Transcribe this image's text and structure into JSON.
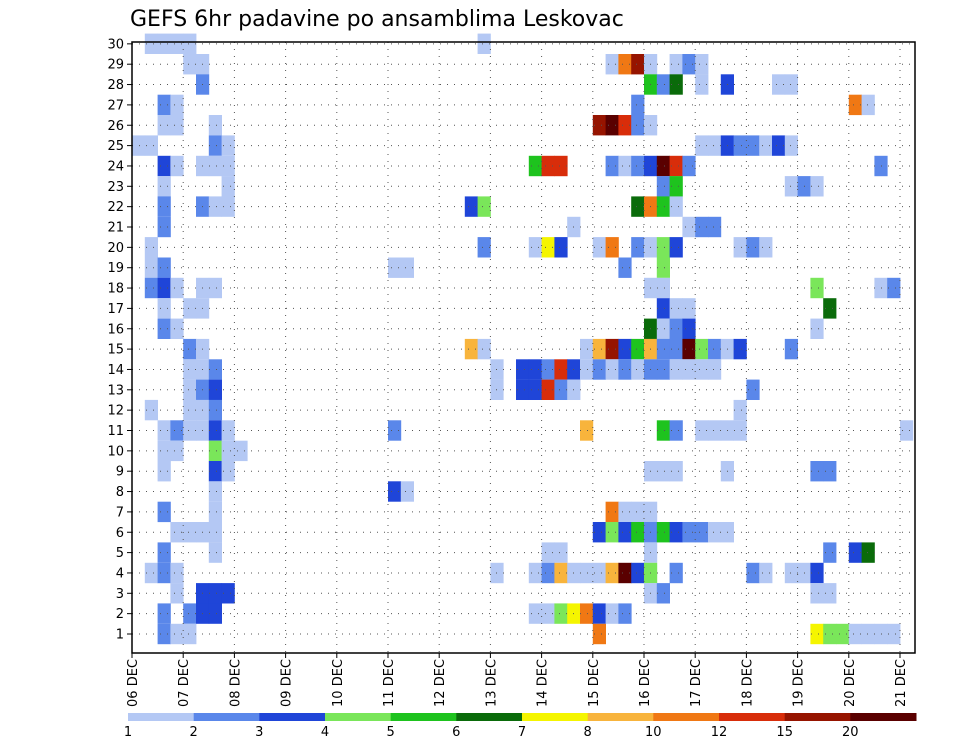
{
  "chart_data": {
    "type": "heatmap",
    "title": "GEFS 6hr padavine po ansamblima Leskovac",
    "xlabel": "",
    "ylabel": "",
    "x_tick_labels": [
      "06 DEC",
      "07 DEC",
      "08 DEC",
      "09 DEC",
      "10 DEC",
      "11 DEC",
      "12 DEC",
      "13 DEC",
      "14 DEC",
      "15 DEC",
      "16 DEC",
      "17 DEC",
      "18 DEC",
      "19 DEC",
      "20 DEC",
      "21 DEC"
    ],
    "y_tick_labels": [
      "1",
      "2",
      "3",
      "4",
      "5",
      "6",
      "7",
      "8",
      "9",
      "10",
      "11",
      "12",
      "13",
      "14",
      "15",
      "16",
      "17",
      "18",
      "19",
      "20",
      "21",
      "22",
      "23",
      "24",
      "25",
      "26",
      "27",
      "28",
      "29",
      "30"
    ],
    "x_range_days": [
      0,
      15.25
    ],
    "y_range_members": [
      0,
      30
    ],
    "grid": true,
    "colorbar": {
      "position": "bottom",
      "levels": [
        1,
        2,
        3,
        4,
        5,
        6,
        7,
        8,
        10,
        12,
        15,
        20
      ],
      "labels": [
        "1",
        "2",
        "3",
        "4",
        "5",
        "6",
        "7",
        "8",
        "10",
        "12",
        "15",
        "20"
      ],
      "colors": [
        "#b4c8f4",
        "#5a87ea",
        "#1f45d8",
        "#7ae65a",
        "#1ec31e",
        "#0a6b0a",
        "#f5f500",
        "#f8b43c",
        "#f07814",
        "#d82d0a",
        "#961400",
        "#5a0000"
      ]
    },
    "cells_note": "each entry: [member, day offset from 06 DEC in 0.25 (6h) steps, precipitation mm]",
    "cells": [
      [
        30,
        0.25,
        1
      ],
      [
        30,
        0.5,
        1
      ],
      [
        30,
        0.75,
        1
      ],
      [
        30,
        1.0,
        1
      ],
      [
        30,
        6.75,
        1
      ],
      [
        29,
        1.0,
        1
      ],
      [
        29,
        1.25,
        1
      ],
      [
        29,
        9.25,
        1
      ],
      [
        29,
        9.5,
        10
      ],
      [
        29,
        9.75,
        15
      ],
      [
        29,
        10.0,
        1
      ],
      [
        29,
        10.5,
        1
      ],
      [
        29,
        10.75,
        2
      ],
      [
        29,
        11.0,
        1
      ],
      [
        28,
        1.25,
        2
      ],
      [
        28,
        10.0,
        5
      ],
      [
        28,
        10.25,
        2
      ],
      [
        28,
        10.5,
        6
      ],
      [
        28,
        11.0,
        1
      ],
      [
        28,
        11.5,
        3
      ],
      [
        28,
        12.5,
        1
      ],
      [
        28,
        12.75,
        1
      ],
      [
        27,
        0.5,
        2
      ],
      [
        27,
        0.75,
        1
      ],
      [
        27,
        9.75,
        2
      ],
      [
        27,
        14.0,
        10
      ],
      [
        27,
        14.25,
        1
      ],
      [
        26,
        0.5,
        1
      ],
      [
        26,
        0.75,
        1
      ],
      [
        26,
        1.5,
        1
      ],
      [
        26,
        9.0,
        15
      ],
      [
        26,
        9.25,
        20
      ],
      [
        26,
        9.5,
        12
      ],
      [
        26,
        9.75,
        2
      ],
      [
        26,
        10.0,
        1
      ],
      [
        25,
        0,
        1
      ],
      [
        25,
        0.25,
        1
      ],
      [
        25,
        1.5,
        2
      ],
      [
        25,
        1.75,
        1
      ],
      [
        25,
        11.0,
        1
      ],
      [
        25,
        11.25,
        1
      ],
      [
        25,
        11.5,
        3
      ],
      [
        25,
        11.75,
        2
      ],
      [
        25,
        12.0,
        2
      ],
      [
        25,
        12.25,
        1
      ],
      [
        25,
        12.5,
        3
      ],
      [
        25,
        12.75,
        1
      ],
      [
        24,
        0.5,
        3
      ],
      [
        24,
        0.75,
        1
      ],
      [
        24,
        1.25,
        1
      ],
      [
        24,
        1.5,
        1
      ],
      [
        24,
        1.75,
        1
      ],
      [
        24,
        7.75,
        5
      ],
      [
        24,
        8.0,
        12
      ],
      [
        24,
        8.25,
        12
      ],
      [
        24,
        9.25,
        2
      ],
      [
        24,
        9.5,
        1
      ],
      [
        24,
        9.75,
        2
      ],
      [
        24,
        10.0,
        3
      ],
      [
        24,
        10.25,
        20
      ],
      [
        24,
        10.5,
        12
      ],
      [
        24,
        10.75,
        2
      ],
      [
        24,
        14.5,
        2
      ],
      [
        23,
        0.5,
        1
      ],
      [
        23,
        1.75,
        1
      ],
      [
        23,
        10.25,
        2
      ],
      [
        23,
        10.5,
        5
      ],
      [
        23,
        12.75,
        1
      ],
      [
        23,
        13.0,
        2
      ],
      [
        23,
        13.25,
        1
      ],
      [
        22,
        0.5,
        2
      ],
      [
        22,
        1.25,
        2
      ],
      [
        22,
        1.5,
        1
      ],
      [
        22,
        1.75,
        1
      ],
      [
        22,
        6.5,
        3
      ],
      [
        22,
        6.75,
        4
      ],
      [
        22,
        9.75,
        6
      ],
      [
        22,
        10.0,
        10
      ],
      [
        22,
        10.25,
        5
      ],
      [
        22,
        10.5,
        1
      ],
      [
        21,
        0.5,
        2
      ],
      [
        21,
        8.5,
        1
      ],
      [
        21,
        10.75,
        1
      ],
      [
        21,
        11.0,
        2
      ],
      [
        21,
        11.25,
        2
      ],
      [
        20,
        0.25,
        1
      ],
      [
        20,
        6.75,
        2
      ],
      [
        20,
        7.75,
        1
      ],
      [
        20,
        8.0,
        7
      ],
      [
        20,
        8.25,
        3
      ],
      [
        20,
        9.0,
        1
      ],
      [
        20,
        9.25,
        10
      ],
      [
        20,
        9.75,
        2
      ],
      [
        20,
        10.0,
        1
      ],
      [
        20,
        10.25,
        4
      ],
      [
        20,
        10.5,
        3
      ],
      [
        20,
        11.75,
        1
      ],
      [
        20,
        12.0,
        2
      ],
      [
        20,
        12.25,
        1
      ],
      [
        19,
        0.25,
        1
      ],
      [
        19,
        0.5,
        2
      ],
      [
        19,
        5.0,
        1
      ],
      [
        19,
        5.25,
        1
      ],
      [
        19,
        9.5,
        2
      ],
      [
        19,
        10.25,
        4
      ],
      [
        18,
        0.25,
        2
      ],
      [
        18,
        0.5,
        3
      ],
      [
        18,
        0.75,
        1
      ],
      [
        18,
        1.25,
        1
      ],
      [
        18,
        1.5,
        1
      ],
      [
        18,
        10.0,
        1
      ],
      [
        18,
        10.25,
        1
      ],
      [
        18,
        13.25,
        4
      ],
      [
        18,
        14.5,
        1
      ],
      [
        18,
        14.75,
        2
      ],
      [
        17,
        0.5,
        1
      ],
      [
        17,
        1.0,
        1
      ],
      [
        17,
        1.25,
        1
      ],
      [
        17,
        10.25,
        3
      ],
      [
        17,
        10.5,
        1
      ],
      [
        17,
        10.75,
        1
      ],
      [
        17,
        13.5,
        6
      ],
      [
        16,
        0.5,
        2
      ],
      [
        16,
        0.75,
        1
      ],
      [
        16,
        10.0,
        6
      ],
      [
        16,
        10.25,
        1
      ],
      [
        16,
        10.5,
        2
      ],
      [
        16,
        10.75,
        3
      ],
      [
        16,
        13.25,
        1
      ],
      [
        15,
        1.0,
        2
      ],
      [
        15,
        1.25,
        1
      ],
      [
        15,
        6.5,
        8
      ],
      [
        15,
        6.75,
        1
      ],
      [
        15,
        8.75,
        1
      ],
      [
        15,
        9.0,
        8
      ],
      [
        15,
        9.25,
        15
      ],
      [
        15,
        9.5,
        3
      ],
      [
        15,
        9.75,
        5
      ],
      [
        15,
        10.0,
        8
      ],
      [
        15,
        10.25,
        2
      ],
      [
        15,
        10.5,
        2
      ],
      [
        15,
        10.75,
        20
      ],
      [
        15,
        11.0,
        4
      ],
      [
        15,
        11.25,
        2
      ],
      [
        15,
        11.5,
        1
      ],
      [
        15,
        11.75,
        3
      ],
      [
        15,
        12.75,
        2
      ],
      [
        14,
        1.0,
        1
      ],
      [
        14,
        1.25,
        1
      ],
      [
        14,
        1.5,
        2
      ],
      [
        14,
        7.0,
        1
      ],
      [
        14,
        7.5,
        3
      ],
      [
        14,
        7.75,
        3
      ],
      [
        14,
        8.0,
        2
      ],
      [
        14,
        8.25,
        12
      ],
      [
        14,
        8.5,
        3
      ],
      [
        14,
        8.75,
        1
      ],
      [
        14,
        9.0,
        2
      ],
      [
        14,
        9.25,
        1
      ],
      [
        14,
        9.5,
        2
      ],
      [
        14,
        9.75,
        1
      ],
      [
        14,
        10.0,
        2
      ],
      [
        14,
        10.25,
        2
      ],
      [
        14,
        10.5,
        1
      ],
      [
        14,
        10.75,
        1
      ],
      [
        14,
        11.0,
        1
      ],
      [
        14,
        11.25,
        1
      ],
      [
        13,
        1.0,
        1
      ],
      [
        13,
        1.25,
        2
      ],
      [
        13,
        1.5,
        3
      ],
      [
        13,
        7.0,
        1
      ],
      [
        13,
        7.5,
        3
      ],
      [
        13,
        7.75,
        3
      ],
      [
        13,
        8.0,
        12
      ],
      [
        13,
        8.25,
        2
      ],
      [
        13,
        8.5,
        1
      ],
      [
        13,
        12.0,
        2
      ],
      [
        12,
        0.25,
        1
      ],
      [
        12,
        1.0,
        1
      ],
      [
        12,
        1.25,
        1
      ],
      [
        12,
        1.5,
        2
      ],
      [
        12,
        11.75,
        1
      ],
      [
        11,
        0.5,
        1
      ],
      [
        11,
        0.75,
        2
      ],
      [
        11,
        1.0,
        1
      ],
      [
        11,
        1.25,
        1
      ],
      [
        11,
        1.5,
        3
      ],
      [
        11,
        1.75,
        1
      ],
      [
        11,
        5.0,
        2
      ],
      [
        11,
        8.75,
        8
      ],
      [
        11,
        10.25,
        5
      ],
      [
        11,
        10.5,
        2
      ],
      [
        11,
        11.0,
        1
      ],
      [
        11,
        11.25,
        1
      ],
      [
        11,
        11.5,
        1
      ],
      [
        11,
        11.75,
        1
      ],
      [
        11,
        15.0,
        1
      ],
      [
        10,
        0.5,
        1
      ],
      [
        10,
        0.75,
        1
      ],
      [
        10,
        1.5,
        4
      ],
      [
        10,
        1.75,
        1
      ],
      [
        10,
        2.0,
        1
      ],
      [
        9,
        0.5,
        1
      ],
      [
        9,
        1.5,
        3
      ],
      [
        9,
        1.75,
        1
      ],
      [
        9,
        10.0,
        1
      ],
      [
        9,
        10.25,
        1
      ],
      [
        9,
        10.5,
        1
      ],
      [
        9,
        11.5,
        1
      ],
      [
        9,
        13.25,
        2
      ],
      [
        9,
        13.5,
        2
      ],
      [
        8,
        1.5,
        1
      ],
      [
        8,
        5.0,
        3
      ],
      [
        8,
        5.25,
        1
      ],
      [
        7,
        0.5,
        2
      ],
      [
        7,
        1.5,
        1
      ],
      [
        7,
        9.25,
        10
      ],
      [
        7,
        9.5,
        1
      ],
      [
        7,
        9.75,
        1
      ],
      [
        7,
        10.0,
        1
      ],
      [
        6,
        0.75,
        1
      ],
      [
        6,
        1.0,
        1
      ],
      [
        6,
        1.25,
        1
      ],
      [
        6,
        1.5,
        1
      ],
      [
        6,
        9.0,
        3
      ],
      [
        6,
        9.25,
        4
      ],
      [
        6,
        9.5,
        3
      ],
      [
        6,
        9.75,
        5
      ],
      [
        6,
        10.0,
        2
      ],
      [
        6,
        10.25,
        5
      ],
      [
        6,
        10.5,
        3
      ],
      [
        6,
        10.75,
        2
      ],
      [
        6,
        11.0,
        2
      ],
      [
        6,
        11.25,
        1
      ],
      [
        6,
        11.5,
        1
      ],
      [
        5,
        0.5,
        2
      ],
      [
        5,
        1.5,
        1
      ],
      [
        5,
        8.0,
        1
      ],
      [
        5,
        8.25,
        1
      ],
      [
        5,
        10.0,
        1
      ],
      [
        5,
        13.5,
        2
      ],
      [
        5,
        14.0,
        3
      ],
      [
        5,
        14.25,
        6
      ],
      [
        4,
        0.25,
        1
      ],
      [
        4,
        0.5,
        2
      ],
      [
        4,
        0.75,
        1
      ],
      [
        4,
        7.0,
        1
      ],
      [
        4,
        7.75,
        1
      ],
      [
        4,
        8.0,
        2
      ],
      [
        4,
        8.25,
        8
      ],
      [
        4,
        8.5,
        1
      ],
      [
        4,
        8.75,
        1
      ],
      [
        4,
        9.0,
        1
      ],
      [
        4,
        9.25,
        8
      ],
      [
        4,
        9.5,
        20
      ],
      [
        4,
        9.75,
        3
      ],
      [
        4,
        10.0,
        4
      ],
      [
        4,
        10.5,
        2
      ],
      [
        4,
        12.0,
        2
      ],
      [
        4,
        12.25,
        1
      ],
      [
        4,
        12.75,
        1
      ],
      [
        4,
        13.0,
        1
      ],
      [
        4,
        13.25,
        3
      ],
      [
        3,
        0.75,
        1
      ],
      [
        3,
        1.25,
        3
      ],
      [
        3,
        1.5,
        3
      ],
      [
        3,
        1.75,
        3
      ],
      [
        3,
        10.0,
        1
      ],
      [
        3,
        10.25,
        2
      ],
      [
        3,
        13.25,
        1
      ],
      [
        3,
        13.5,
        1
      ],
      [
        2,
        0.5,
        2
      ],
      [
        2,
        1.0,
        2
      ],
      [
        2,
        1.25,
        3
      ],
      [
        2,
        1.5,
        3
      ],
      [
        2,
        7.75,
        1
      ],
      [
        2,
        8.0,
        1
      ],
      [
        2,
        8.25,
        4
      ],
      [
        2,
        8.5,
        7
      ],
      [
        2,
        8.75,
        10
      ],
      [
        2,
        9.0,
        3
      ],
      [
        2,
        9.25,
        1
      ],
      [
        2,
        9.5,
        2
      ],
      [
        1,
        0.5,
        2
      ],
      [
        1,
        0.75,
        1
      ],
      [
        1,
        1.0,
        1
      ],
      [
        1,
        9.0,
        10
      ],
      [
        1,
        13.25,
        7
      ],
      [
        1,
        13.5,
        4
      ],
      [
        1,
        13.75,
        4
      ],
      [
        1,
        14.0,
        1
      ],
      [
        1,
        14.25,
        1
      ],
      [
        1,
        14.5,
        1
      ],
      [
        1,
        14.75,
        1
      ]
    ]
  }
}
